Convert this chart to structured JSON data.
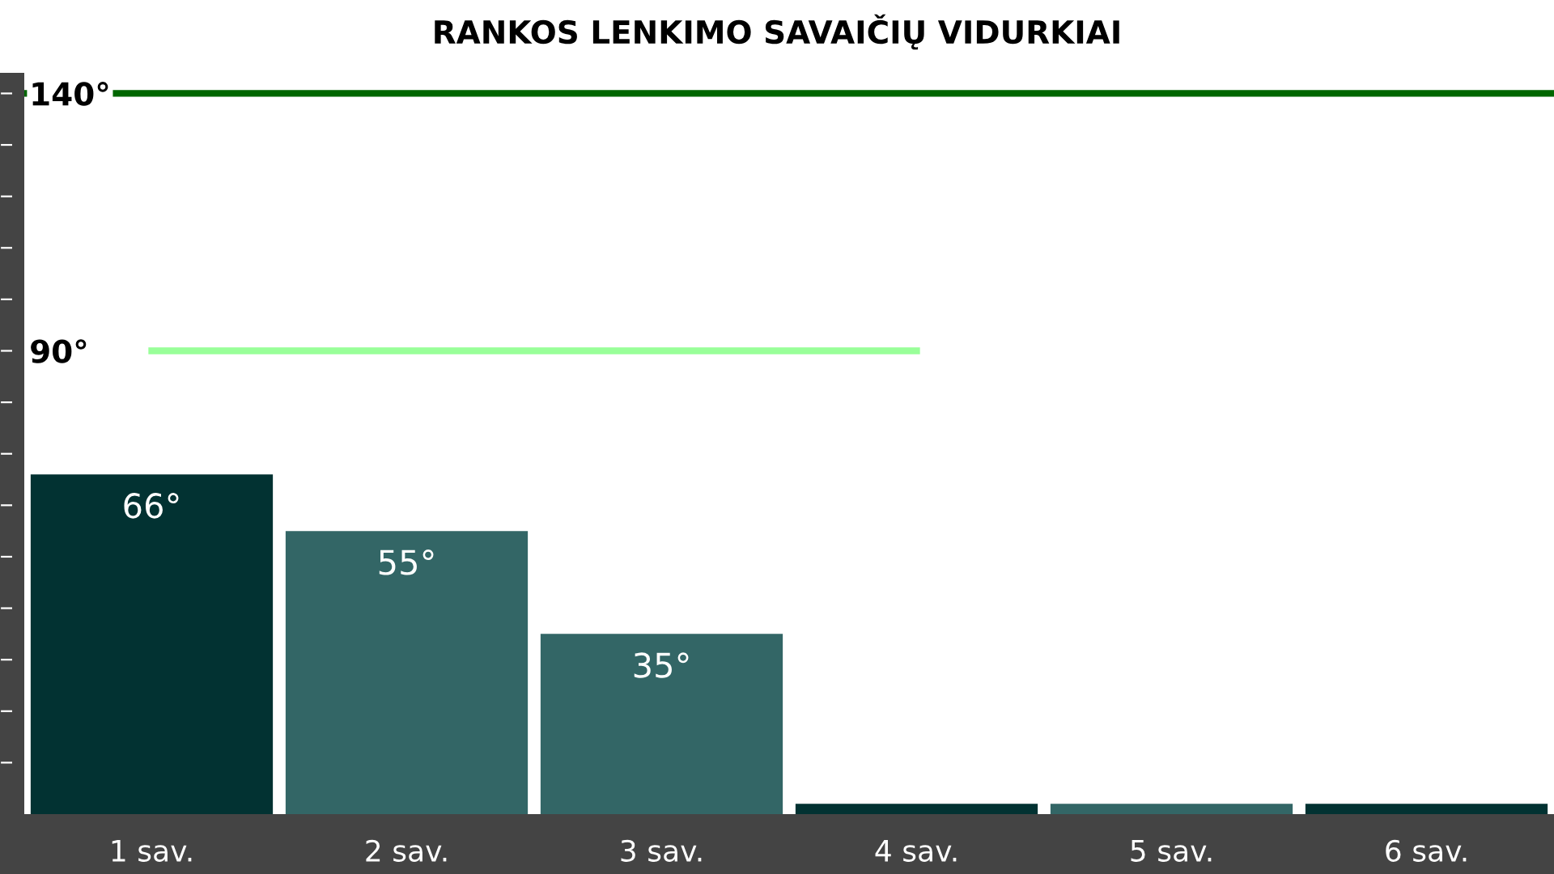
{
  "chart_data": {
    "type": "bar",
    "title": "RANKOS LENKIMO SAVAIČIŲ VIDURKIAI",
    "categories": [
      "1 sav.",
      "2 sav.",
      "3 sav.",
      "4 sav.",
      "5 sav.",
      "6 sav."
    ],
    "series": [
      {
        "colors": [
          "#023232",
          "#336666",
          "#336666",
          "#023232",
          "#336666",
          "#023232"
        ],
        "values": [
          66,
          55,
          35,
          2,
          2,
          2
        ],
        "value_labels": [
          "66°",
          "55°",
          "35°",
          null,
          null,
          null
        ]
      },
      {
        "type": "line",
        "color": "#99ff99",
        "values": [
          90,
          90,
          90,
          90,
          null,
          null
        ]
      }
    ],
    "ref_lines": [
      {
        "axis": "y",
        "value": 140,
        "color": "#006600",
        "line_style": "solid"
      }
    ],
    "ylim": [
      0,
      144
    ],
    "yticks": [
      {
        "value": 10,
        "label": null
      },
      {
        "value": 20,
        "label": null
      },
      {
        "value": 30,
        "label": null
      },
      {
        "value": 40,
        "label": null
      },
      {
        "value": 50,
        "label": null
      },
      {
        "value": 60,
        "label": null
      },
      {
        "value": 70,
        "label": null
      },
      {
        "value": 80,
        "label": null
      },
      {
        "value": 90,
        "label": "90°"
      },
      {
        "value": 100,
        "label": null
      },
      {
        "value": 110,
        "label": null
      },
      {
        "value": 120,
        "label": null
      },
      {
        "value": 130,
        "label": null
      },
      {
        "value": 140,
        "label": "140°"
      }
    ],
    "grid": false,
    "legend": false
  }
}
